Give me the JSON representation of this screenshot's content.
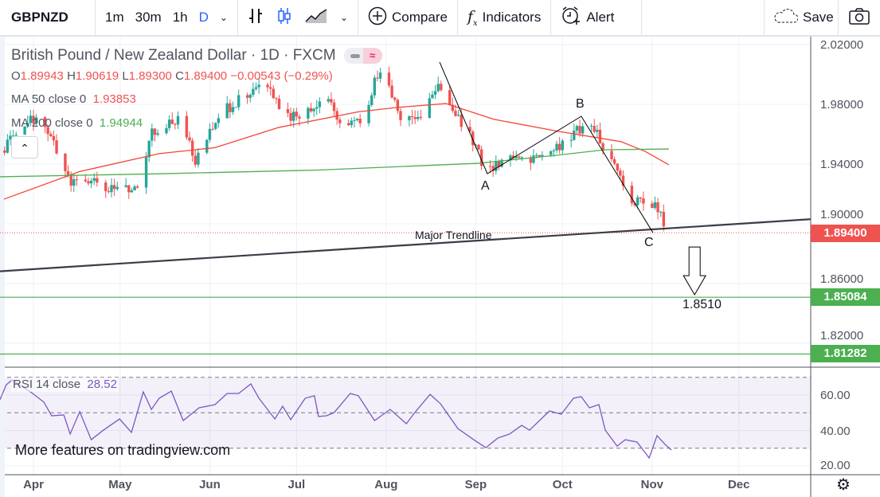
{
  "toolbar": {
    "symbol": "GBPNZD",
    "intervals": [
      "1m",
      "30m",
      "1h",
      "D"
    ],
    "active_interval": "D",
    "compare_label": "Compare",
    "indicators_label": "Indicators",
    "alert_label": "Alert",
    "save_label": "Save"
  },
  "legend": {
    "title": "British Pound / New Zealand Dollar · 1D · FXCM",
    "ohlc": {
      "o_label": "O",
      "o": "1.89943",
      "h_label": "H",
      "h": "1.90619",
      "l_label": "L",
      "l": "1.89300",
      "c_label": "C",
      "c": "1.89400",
      "change": "−0.00543 (−0.29%)"
    },
    "ma50": {
      "label": "MA 50 close 0",
      "value": "1.93853"
    },
    "ma200": {
      "label": "MA 200 close 0",
      "value": "1.94944"
    },
    "rsi": {
      "label": "RSI 14 close",
      "value": "28.52"
    }
  },
  "colors": {
    "up": "#26a69a",
    "down": "#ef5350",
    "ma50": "#f44336",
    "ma200": "#4caf50",
    "rsi": "#7e57c2",
    "level": "#4caf50"
  },
  "price_scale": {
    "ticks": [
      "2.02000",
      "1.98000",
      "1.94000",
      "1.90000",
      "1.86000",
      "1.82000"
    ],
    "last_price": "1.89400",
    "levels": [
      "1.85084",
      "1.81282"
    ]
  },
  "rsi_scale": {
    "ticks": [
      "60.00",
      "40.00",
      "20.00"
    ]
  },
  "time_axis": {
    "labels": [
      "Apr",
      "May",
      "Jun",
      "Jul",
      "Aug",
      "Sep",
      "Oct",
      "Nov",
      "Dec"
    ]
  },
  "annotations": {
    "trendline_label": "Major Trendline",
    "a": "A",
    "b": "B",
    "c": "C",
    "target": "1.8510"
  },
  "watermark": "More features on tradingview.com",
  "chart_data": {
    "type": "candlestick",
    "x_unit": "days from Apr 1",
    "month_days": [
      0,
      30,
      61,
      91,
      122,
      153,
      183,
      214,
      244
    ],
    "price_range": [
      1.7995,
      2.026
    ],
    "price_path": [
      [
        -10.2,
        1.949
      ],
      [
        -6,
        1.962
      ],
      [
        2.2,
        1.973
      ],
      [
        7.7,
        1.95
      ],
      [
        13.2,
        1.927
      ],
      [
        18.7,
        1.93
      ],
      [
        24.2,
        1.922
      ],
      [
        36.6,
        1.925
      ],
      [
        40.8,
        1.962
      ],
      [
        50.4,
        1.97
      ],
      [
        55.9,
        1.943
      ],
      [
        65.6,
        1.975
      ],
      [
        76.6,
        1.991
      ],
      [
        80.7,
        1.996
      ],
      [
        86.2,
        1.97
      ],
      [
        93.1,
        1.973
      ],
      [
        101.4,
        1.986
      ],
      [
        106.9,
        1.965
      ],
      [
        115.2,
        1.973
      ],
      [
        117.9,
        1.996
      ],
      [
        120.7,
        2.002
      ],
      [
        126.2,
        1.973
      ],
      [
        134.4,
        1.97
      ],
      [
        139.9,
        1.996
      ],
      [
        144.1,
        1.98
      ],
      [
        151,
        1.96
      ],
      [
        156.5,
        1.935
      ],
      [
        164.7,
        1.946
      ],
      [
        175.8,
        1.943
      ],
      [
        184,
        1.954
      ],
      [
        189.5,
        1.965
      ],
      [
        195,
        1.96
      ],
      [
        200.6,
        1.938
      ],
      [
        206,
        1.919
      ],
      [
        212.9,
        1.909
      ],
      [
        215.7,
        1.912
      ],
      [
        219.8,
        1.894
      ]
    ],
    "ma50": [
      [
        -10.2,
        1.9165
      ],
      [
        16,
        1.935
      ],
      [
        43.5,
        1.947
      ],
      [
        62.8,
        1.951
      ],
      [
        84.8,
        1.9645
      ],
      [
        112.4,
        1.975
      ],
      [
        126.2,
        1.978
      ],
      [
        142.7,
        1.9805
      ],
      [
        159.2,
        1.97
      ],
      [
        181.3,
        1.962
      ],
      [
        203.3,
        1.955
      ],
      [
        211.6,
        1.9485
      ],
      [
        219.8,
        1.9395
      ]
    ],
    "ma200": [
      [
        -11.6,
        1.9315
      ],
      [
        43.5,
        1.9335
      ],
      [
        98.6,
        1.936
      ],
      [
        153.7,
        1.9405
      ],
      [
        181.3,
        1.946
      ],
      [
        197.8,
        1.9496
      ],
      [
        219.8,
        1.9501
      ]
    ],
    "trendline": [
      [
        -11.6,
        1.8682
      ],
      [
        268.9,
        1.9031
      ]
    ],
    "abc_path": [
      [
        140.5,
        2.0083
      ],
      [
        157,
        1.9336
      ],
      [
        189.5,
        1.972
      ],
      [
        214.3,
        1.8941
      ]
    ],
    "target_arrow": {
      "day": 228.7,
      "from": 1.8845,
      "to": 1.8525
    },
    "rsi_levels": [
      70,
      50,
      30
    ],
    "rsi": [
      [
        -11.6,
        57.3
      ],
      [
        -9.4,
        65.8
      ],
      [
        -7.4,
        68.5
      ],
      [
        -0.6,
        61.3
      ],
      [
        3.6,
        56
      ],
      [
        6.3,
        48.3
      ],
      [
        10.5,
        48.8
      ],
      [
        12.7,
        38
      ],
      [
        16,
        50.6
      ],
      [
        20,
        34.8
      ],
      [
        24.2,
        40.2
      ],
      [
        29.8,
        46.5
      ],
      [
        33.9,
        38.9
      ],
      [
        38,
        61.8
      ],
      [
        40.8,
        51.9
      ],
      [
        43.5,
        58.2
      ],
      [
        47.7,
        62.2
      ],
      [
        51.8,
        45.6
      ],
      [
        57.3,
        52.8
      ],
      [
        62.8,
        54.6
      ],
      [
        67,
        60.9
      ],
      [
        71,
        60.9
      ],
      [
        75.2,
        66.3
      ],
      [
        78,
        58.2
      ],
      [
        83.5,
        46.5
      ],
      [
        86.2,
        53.7
      ],
      [
        89,
        46.1
      ],
      [
        94,
        58.2
      ],
      [
        97.2,
        59.6
      ],
      [
        98.6,
        47.9
      ],
      [
        101.4,
        48.3
      ],
      [
        104,
        50.1
      ],
      [
        109.6,
        60.9
      ],
      [
        112.4,
        59.6
      ],
      [
        118,
        45.6
      ],
      [
        123.4,
        51.9
      ],
      [
        129,
        43.8
      ],
      [
        131.7,
        49.7
      ],
      [
        137.2,
        60.4
      ],
      [
        140.8,
        55.1
      ],
      [
        146.8,
        41.1
      ],
      [
        152.3,
        34.8
      ],
      [
        156.5,
        30.3
      ],
      [
        160.6,
        35.7
      ],
      [
        164.7,
        38
      ],
      [
        168.9,
        42.9
      ],
      [
        171.6,
        40.2
      ],
      [
        178.5,
        51
      ],
      [
        182.6,
        49.2
      ],
      [
        186.8,
        58.2
      ],
      [
        189.5,
        59.1
      ],
      [
        192.3,
        52.8
      ],
      [
        195.6,
        54.6
      ],
      [
        197.8,
        40.2
      ],
      [
        201.9,
        31.2
      ],
      [
        204.7,
        34.8
      ],
      [
        208.8,
        33.5
      ],
      [
        213,
        24.5
      ],
      [
        215.7,
        37.1
      ],
      [
        218.5,
        32.1
      ],
      [
        220.7,
        29
      ]
    ]
  }
}
